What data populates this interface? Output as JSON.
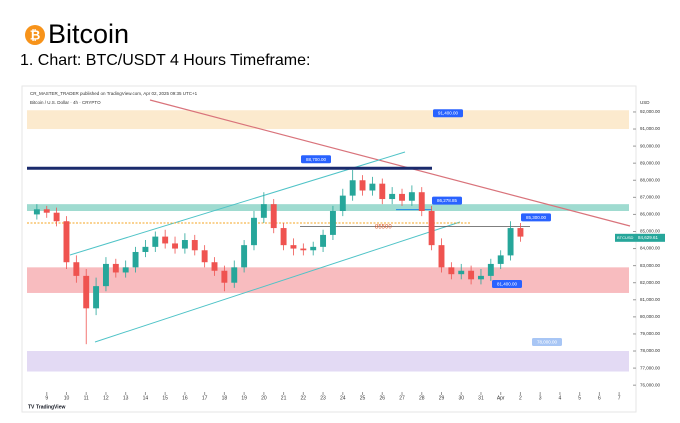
{
  "header": {
    "title": "Bitcoin",
    "subtitle": "1. Chart: BTC/USDT 4 Hours Timeframe:"
  },
  "chart_data": {
    "type": "candlestick",
    "publisher": "CR_MASTER_TRADER published on TradingView.com, Apr 02, 2025 09:35 UTC+1",
    "symbol": "Bitcoin / U.S. Dollar · 4h · CRYPTO",
    "axis_unit": "USD",
    "brand": "TradingView",
    "x": [
      8.5,
      9,
      9.5,
      10,
      10.5,
      11,
      11.5,
      12,
      12.5,
      13,
      13.5,
      14,
      14.5,
      15,
      15.5,
      16,
      16.5,
      17,
      17.5,
      18,
      18.5,
      19,
      19.5,
      20,
      20.5,
      21,
      21.5,
      22,
      22.5,
      23,
      23.5,
      24,
      24.5,
      25,
      25.5,
      26,
      26.5,
      27,
      27.5,
      28,
      28.5,
      29,
      29.5,
      30,
      30.5,
      31,
      31.5,
      32,
      32.5,
      33
    ],
    "open": [
      86000,
      86300,
      86100,
      85600,
      83200,
      82400,
      80500,
      81800,
      83100,
      82600,
      82900,
      83800,
      84100,
      84700,
      84300,
      84000,
      84500,
      83900,
      83200,
      82700,
      82000,
      82900,
      84200,
      85800,
      86600,
      85200,
      84200,
      84000,
      83900,
      84100,
      84800,
      86200,
      87100,
      88000,
      87400,
      87800,
      86900,
      87200,
      86800,
      87300,
      86200,
      84200,
      82900,
      82500,
      82700,
      82200,
      82400,
      83100,
      83600,
      85200
    ],
    "high": [
      86600,
      86500,
      86400,
      85900,
      83600,
      82800,
      82300,
      83500,
      83400,
      83300,
      84100,
      84500,
      85000,
      85100,
      84700,
      84900,
      84800,
      84200,
      83500,
      83000,
      83300,
      84500,
      86200,
      87300,
      86900,
      85500,
      84600,
      84300,
      84400,
      85100,
      86500,
      87500,
      88600,
      88300,
      88200,
      88100,
      87600,
      87500,
      87700,
      87600,
      86500,
      84600,
      83200,
      83100,
      83000,
      82800,
      83400,
      83900,
      85600,
      85500
    ],
    "low": [
      85700,
      85800,
      85300,
      82800,
      82000,
      78400,
      80100,
      81500,
      82300,
      82300,
      82600,
      83500,
      83800,
      84000,
      83700,
      83700,
      83600,
      82900,
      82400,
      81500,
      81700,
      82600,
      83900,
      85500,
      84900,
      83900,
      83600,
      83600,
      83600,
      83800,
      84500,
      85900,
      86800,
      87100,
      87100,
      86600,
      86600,
      86500,
      86500,
      85900,
      83900,
      82600,
      82200,
      82200,
      81900,
      81900,
      82100,
      82800,
      83300,
      84400
    ],
    "close": [
      86300,
      86100,
      85600,
      83200,
      82400,
      80500,
      81800,
      83100,
      82600,
      82900,
      83800,
      84100,
      84700,
      84300,
      84000,
      84500,
      83900,
      83200,
      82700,
      82000,
      82900,
      84200,
      85800,
      86600,
      85200,
      84200,
      84000,
      83900,
      84100,
      84800,
      86200,
      87100,
      88000,
      87400,
      87800,
      86900,
      87200,
      86800,
      87300,
      86200,
      84200,
      82900,
      82500,
      82700,
      82200,
      82400,
      83100,
      83600,
      85200,
      84700
    ],
    "up_color": "#26a69a",
    "down_color": "#ef5350",
    "xlim": [
      8,
      38.5
    ],
    "xticks": [
      9,
      10,
      11,
      12,
      13,
      14,
      15,
      16,
      17,
      18,
      19,
      20,
      21,
      22,
      23,
      24,
      25,
      26,
      27,
      28,
      29,
      30,
      31,
      {
        "value": 32,
        "label": "Apr"
      },
      {
        "value": 33,
        "label": "2"
      },
      {
        "value": 34,
        "label": "3"
      },
      {
        "value": 35,
        "label": "4"
      },
      {
        "value": 36,
        "label": "5"
      },
      {
        "value": 37,
        "label": "6"
      },
      {
        "value": 38,
        "label": "7"
      }
    ],
    "ylim": [
      75600,
      92700
    ],
    "yticks": [
      {
        "value": 76000,
        "label": "76,000.00"
      },
      {
        "value": 77000,
        "label": "77,000.00"
      },
      {
        "value": 78000,
        "label": "78,000.00"
      },
      {
        "value": 79000,
        "label": "79,000.00"
      },
      {
        "value": 80000,
        "label": "80,000.00"
      },
      {
        "value": 81000,
        "label": "81,000.00"
      },
      {
        "value": 82000,
        "label": "82,000.00"
      },
      {
        "value": 83000,
        "label": "83,000.00"
      },
      {
        "value": 84000,
        "label": "84,000.00"
      },
      {
        "value": 85000,
        "label": "85,000.00"
      },
      {
        "value": 86000,
        "label": "86,000.00"
      },
      {
        "value": 87000,
        "label": "87,000.00"
      },
      {
        "value": 88000,
        "label": "88,000.00"
      },
      {
        "value": 89000,
        "label": "89,000.00"
      },
      {
        "value": 90000,
        "label": "90,000.00"
      },
      {
        "value": 91000,
        "label": "91,000.00"
      },
      {
        "value": 92000,
        "label": "92,000.00"
      }
    ],
    "zones": [
      {
        "from": 91000,
        "to": 92100,
        "color": "#fbe3bd"
      },
      {
        "from": 86200,
        "to": 86600,
        "color": "#7fcfc0"
      },
      {
        "from": 81400,
        "to": 82900,
        "color": "#f6a5aa"
      },
      {
        "from": 76800,
        "to": 78000,
        "color": "#d9cdf0"
      }
    ],
    "levels": [
      {
        "value": 91400,
        "label": "91,400.00"
      },
      {
        "value": 88700,
        "label": "88,700.00"
      },
      {
        "value": 86278.85,
        "label": "86,278.85"
      },
      {
        "value": 85300,
        "label": "85,300.00"
      },
      {
        "value": 81400,
        "label": "81,400.00"
      },
      {
        "value": 78000,
        "label": "78,000.00"
      }
    ],
    "marker": {
      "value": 85500,
      "label": "85500"
    },
    "last_price": {
      "name": "BTCUSD",
      "value": 84629.61,
      "label": "84,629.61"
    }
  }
}
